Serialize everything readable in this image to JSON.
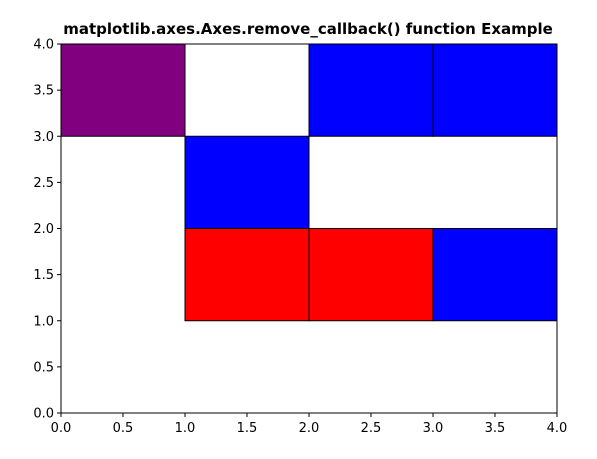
{
  "chart_data": {
    "type": "heatmap",
    "title": "matplotlib.axes.Axes.remove_callback() function Example",
    "xlabel": "",
    "ylabel": "",
    "xlim": [
      0.0,
      4.0
    ],
    "ylim": [
      0.0,
      4.0
    ],
    "grid": false,
    "xticks": [
      "0.0",
      "0.5",
      "1.0",
      "1.5",
      "2.0",
      "2.5",
      "3.0",
      "3.5",
      "4.0"
    ],
    "yticks": [
      "0.0",
      "0.5",
      "1.0",
      "1.5",
      "2.0",
      "2.5",
      "3.0",
      "3.5",
      "4.0"
    ],
    "cells": [
      {
        "x0": 0,
        "x1": 1,
        "y0": 3,
        "y1": 4,
        "color": "#800080"
      },
      {
        "x0": 2,
        "x1": 3,
        "y0": 3,
        "y1": 4,
        "color": "#0000ff"
      },
      {
        "x0": 3,
        "x1": 4,
        "y0": 3,
        "y1": 4,
        "color": "#0000ff"
      },
      {
        "x0": 1,
        "x1": 2,
        "y0": 2,
        "y1": 3,
        "color": "#0000ff"
      },
      {
        "x0": 1,
        "x1": 2,
        "y0": 1,
        "y1": 2,
        "color": "#ff0000"
      },
      {
        "x0": 2,
        "x1": 3,
        "y0": 1,
        "y1": 2,
        "color": "#ff0000"
      },
      {
        "x0": 3,
        "x1": 4,
        "y0": 1,
        "y1": 2,
        "color": "#0000ff"
      }
    ]
  }
}
